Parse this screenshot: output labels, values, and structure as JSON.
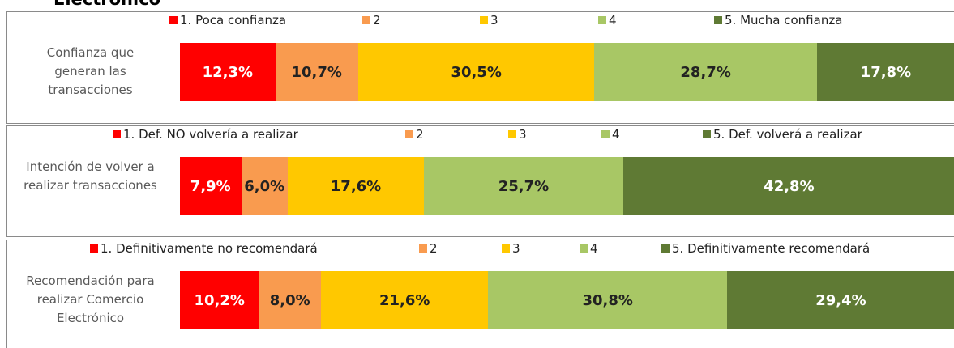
{
  "title": "Electrónico",
  "chart_data": [
    {
      "type": "bar",
      "orientation": "horizontal",
      "stacked": true,
      "categories": [
        "Confianza que\ngeneran las\ntransacciones"
      ],
      "series": [
        {
          "name": "1. Poca confianza",
          "color": "#ff0000",
          "values": [
            12.3
          ],
          "value_labels": [
            "12,3%"
          ]
        },
        {
          "name": "2",
          "color": "#f99b4f",
          "values": [
            10.7
          ],
          "value_labels": [
            "10,7%"
          ]
        },
        {
          "name": "3",
          "color": "#ffc800",
          "values": [
            30.5
          ],
          "value_labels": [
            "30,5%"
          ]
        },
        {
          "name": "4",
          "color": "#a8c765",
          "values": [
            28.7
          ],
          "value_labels": [
            "28,7%"
          ]
        },
        {
          "name": "5. Mucha confianza",
          "color": "#5f7a34",
          "values": [
            17.8
          ],
          "value_labels": [
            "17,8%"
          ]
        }
      ]
    },
    {
      "type": "bar",
      "orientation": "horizontal",
      "stacked": true,
      "categories": [
        "Intención de volver a\nrealizar transacciones"
      ],
      "series": [
        {
          "name": "1. Def. NO volvería a realizar",
          "color": "#ff0000",
          "values": [
            7.9
          ],
          "value_labels": [
            "7,9%"
          ]
        },
        {
          "name": "2",
          "color": "#f99b4f",
          "values": [
            6.0
          ],
          "value_labels": [
            "6,0%"
          ]
        },
        {
          "name": "3",
          "color": "#ffc800",
          "values": [
            17.6
          ],
          "value_labels": [
            "17,6%"
          ]
        },
        {
          "name": "4",
          "color": "#a8c765",
          "values": [
            25.7
          ],
          "value_labels": [
            "25,7%"
          ]
        },
        {
          "name": "5. Def. volverá a realizar",
          "color": "#5f7a34",
          "values": [
            42.8
          ],
          "value_labels": [
            "42,8%"
          ]
        }
      ]
    },
    {
      "type": "bar",
      "orientation": "horizontal",
      "stacked": true,
      "categories": [
        "Recomendación para\nrealizar Comercio\nElectrónico"
      ],
      "series": [
        {
          "name": "1. Definitivamente no recomendará",
          "color": "#ff0000",
          "values": [
            10.2
          ],
          "value_labels": [
            "10,2%"
          ]
        },
        {
          "name": "2",
          "color": "#f99b4f",
          "values": [
            8.0
          ],
          "value_labels": [
            "8,0%"
          ]
        },
        {
          "name": "3",
          "color": "#ffc800",
          "values": [
            21.6
          ],
          "value_labels": [
            "21,6%"
          ]
        },
        {
          "name": "4",
          "color": "#a8c765",
          "values": [
            30.8
          ],
          "value_labels": [
            "30,8%"
          ]
        },
        {
          "name": "5. Definitivamente recomendará",
          "color": "#5f7a34",
          "values": [
            29.4
          ],
          "value_labels": [
            "29,4%"
          ]
        }
      ]
    }
  ]
}
